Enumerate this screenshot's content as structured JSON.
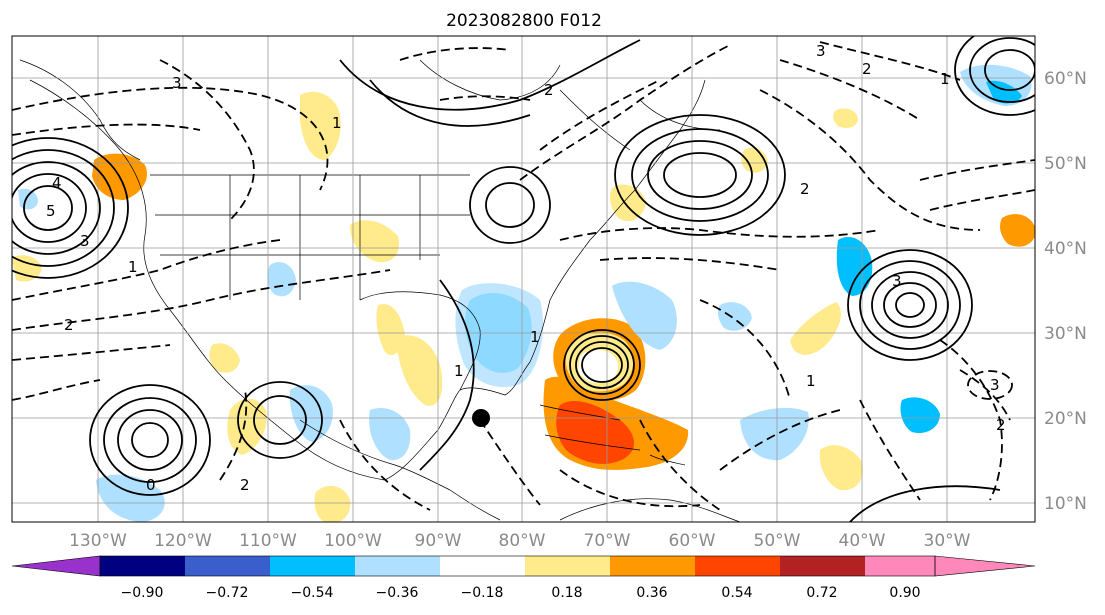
{
  "title": "2023082800 F012",
  "lon_ticks": [
    "130°W",
    "120°W",
    "110°W",
    "100°W",
    "90°W",
    "80°W",
    "70°W",
    "60°W",
    "50°W",
    "40°W",
    "30°W"
  ],
  "lat_ticks": [
    "60°N",
    "50°N",
    "40°N",
    "30°N",
    "20°N",
    "10°N"
  ],
  "colorbar": {
    "ticks": [
      "−0.90",
      "−0.72",
      "−0.54",
      "−0.36",
      "−0.18",
      "0.18",
      "0.36",
      "0.54",
      "0.72",
      "0.90"
    ],
    "colors": [
      "#9932cc",
      "#000080",
      "#3a5fcd",
      "#00bfff",
      "#b0e0ff",
      "#ffffff",
      "#ffeb8c",
      "#ff9900",
      "#ff4500",
      "#b22222",
      "#ff88bb"
    ]
  },
  "contour_labels": [
    "3",
    "2",
    "4",
    "5",
    "3",
    "1",
    "2",
    "1",
    "2",
    "3",
    "2",
    "1",
    "3",
    "2",
    "1",
    "1",
    "1",
    "3",
    "0",
    "2"
  ],
  "colors": {
    "frame": "#000000",
    "grid": "#9a9a9a",
    "dashed": "#000000",
    "marker": "#000000"
  }
}
